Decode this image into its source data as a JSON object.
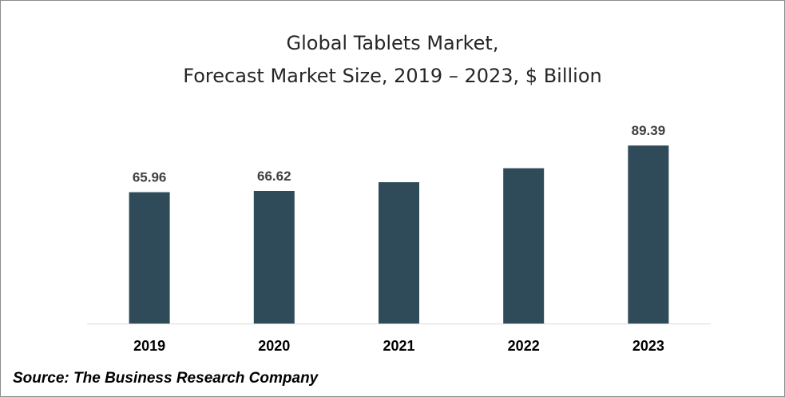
{
  "chart_data": {
    "type": "bar",
    "title_line1": "Global Tablets Market,",
    "title_line2": "Forecast Market Size, 2019 – 2023, $ Billion",
    "categories": [
      "2019",
      "2020",
      "2021",
      "2022",
      "2023"
    ],
    "values": [
      65.96,
      66.62,
      71.0,
      78.0,
      89.39
    ],
    "data_labels": [
      "65.96",
      "66.62",
      "",
      "",
      "89.39"
    ],
    "xlabel": "",
    "ylabel": "",
    "ylim": [
      0,
      100
    ],
    "grid": false,
    "legend": "none",
    "bar_color": "#2f4b5a"
  },
  "source": "Source: The Business Research Company"
}
